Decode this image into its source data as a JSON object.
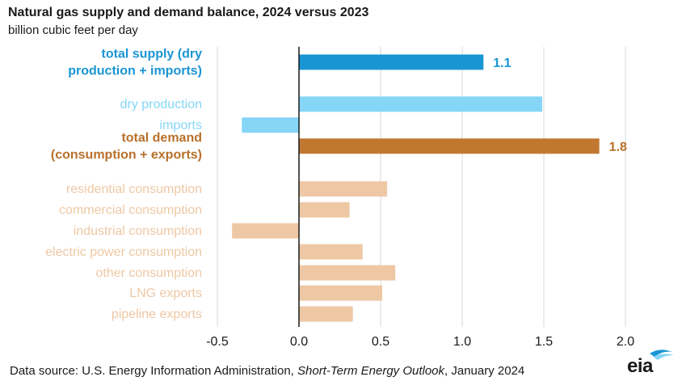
{
  "header": {
    "title": "Natural gas supply and demand balance, 2024 versus 2023",
    "subtitle": "billion cubic feet per day"
  },
  "footer": {
    "prefix": "Data source: U.S. Energy Information Administration, ",
    "italic": "Short-Term Energy Outlook",
    "suffix": ", January 2024"
  },
  "logo": {
    "text": "eia"
  },
  "chart_data": {
    "type": "bar",
    "orientation": "horizontal",
    "xlim": [
      -0.5,
      2.0
    ],
    "x_ticks": [
      -0.5,
      0.0,
      0.5,
      1.0,
      1.5,
      2.0
    ],
    "x_tick_labels": [
      "-0.5",
      "0.0",
      "0.5",
      "1.0",
      "1.5",
      "2.0"
    ],
    "grid": "vertical",
    "categories": [
      {
        "label": [
          "total supply (dry",
          "production + imports)"
        ],
        "value": 1.13,
        "data_label": "1.1",
        "color": "#1a95d3",
        "label_color": "#1a95d3",
        "bold": true
      },
      {
        "label": [
          "dry production"
        ],
        "value": 1.49,
        "data_label": "",
        "color": "#85d6f7",
        "label_color": "#85d6f7",
        "bold": false
      },
      {
        "label": [
          "imports"
        ],
        "value": -0.35,
        "data_label": "",
        "color": "#85d6f7",
        "label_color": "#85d6f7",
        "bold": false
      },
      {
        "label": [
          "total demand",
          "(consumption + exports)"
        ],
        "value": 1.84,
        "data_label": "1.8",
        "color": "#c07830",
        "label_color": "#b8702a",
        "bold": true
      },
      {
        "label": [
          "residential consumption"
        ],
        "value": 0.54,
        "data_label": "",
        "color": "#eec8a4",
        "label_color": "#eec8a4",
        "bold": false
      },
      {
        "label": [
          "commercial consumption"
        ],
        "value": 0.31,
        "data_label": "",
        "color": "#eec8a4",
        "label_color": "#eec8a4",
        "bold": false
      },
      {
        "label": [
          "industrial consumption"
        ],
        "value": -0.41,
        "data_label": "",
        "color": "#eec8a4",
        "label_color": "#eec8a4",
        "bold": false
      },
      {
        "label": [
          "electric power consumption"
        ],
        "value": 0.39,
        "data_label": "",
        "color": "#eec8a4",
        "label_color": "#eec8a4",
        "bold": false
      },
      {
        "label": [
          "other consumption"
        ],
        "value": 0.59,
        "data_label": "",
        "color": "#eec8a4",
        "label_color": "#eec8a4",
        "bold": false
      },
      {
        "label": [
          "LNG exports"
        ],
        "value": 0.51,
        "data_label": "",
        "color": "#eec8a4",
        "label_color": "#eec8a4",
        "bold": false
      },
      {
        "label": [
          "pipeline exports"
        ],
        "value": 0.33,
        "data_label": "",
        "color": "#eec8a4",
        "label_color": "#eec8a4",
        "bold": false
      }
    ]
  }
}
